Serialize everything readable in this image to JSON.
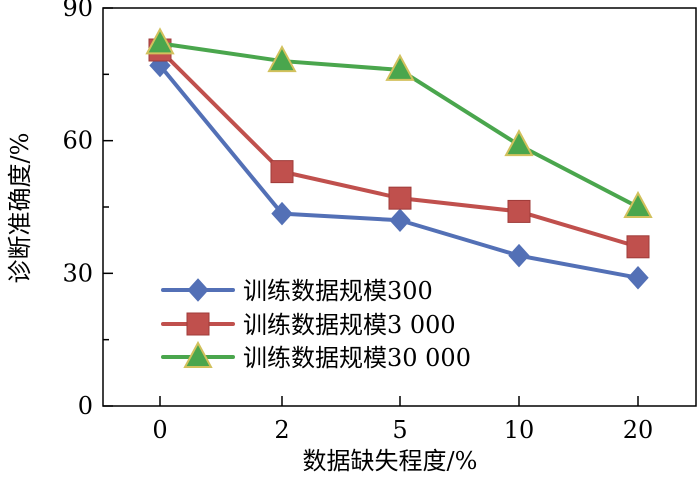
{
  "chart_data": {
    "type": "line",
    "xlabel": "数据缺失程度/%",
    "ylabel": "诊断准确度/%",
    "categories": [
      "0",
      "2",
      "5",
      "10",
      "20"
    ],
    "y_ticks": [
      "0",
      "30",
      "60",
      "90"
    ],
    "ylim": [
      0,
      90
    ],
    "legend_position": "bottom-left",
    "series": [
      {
        "name": "训练数据规模300",
        "values": [
          77,
          43.5,
          42,
          34,
          29
        ],
        "color": "#5370b6",
        "marker": "diamond"
      },
      {
        "name": "训练数据规模3 000",
        "values": [
          80.5,
          53,
          47,
          44,
          36
        ],
        "color": "#c0504d",
        "marker": "square"
      },
      {
        "name": "训练数据规模30 000",
        "values": [
          82,
          78,
          76,
          59,
          45
        ],
        "color": "#4aa64d",
        "marker": "triangle"
      }
    ]
  }
}
